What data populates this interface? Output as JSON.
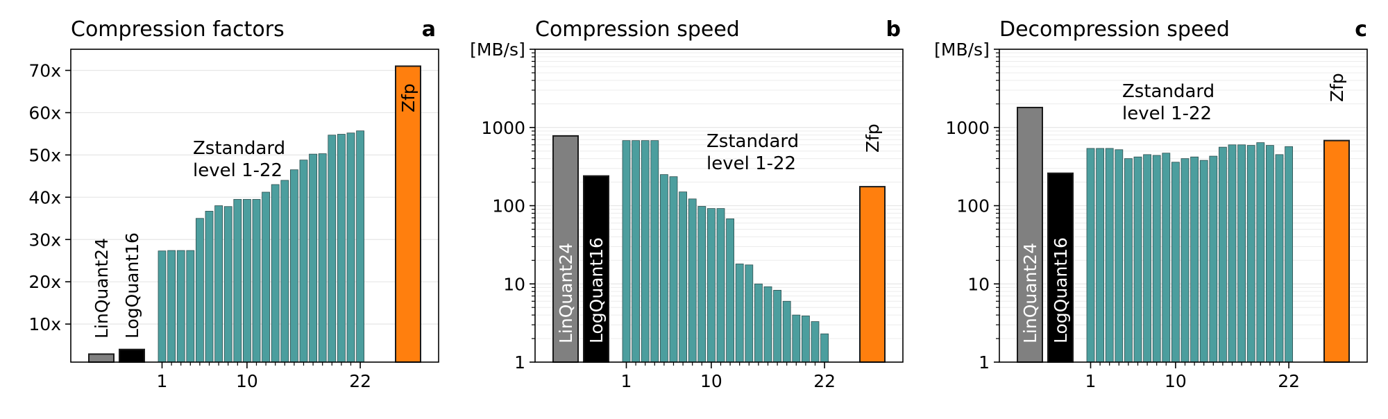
{
  "chart_data": [
    {
      "type": "bar",
      "title": "Compression factors",
      "panel_letter": "a",
      "ylabel": "",
      "ylim": [
        1,
        75
      ],
      "yscale": "linear",
      "yticks": [
        10,
        20,
        30,
        40,
        50,
        60,
        70
      ],
      "ytick_labels": [
        "10x",
        "20x",
        "30x",
        "40x",
        "50x",
        "60x",
        "70x"
      ],
      "xtick_labels": [
        "1",
        "10",
        "22"
      ],
      "bars": [
        {
          "label": "LinQuant24",
          "value": 2.9,
          "color": "#808080"
        },
        {
          "label": "LogQuant16",
          "value": 4.0,
          "color": "#000000"
        },
        {
          "label": "Zfp",
          "value": 71.0,
          "color": "#ff7f0e"
        }
      ],
      "zstd": {
        "label_line1": "Zstandard",
        "label_line2": "level 1-22",
        "color": "#4c9e9e",
        "levels": [
          1,
          2,
          3,
          4,
          5,
          6,
          7,
          8,
          9,
          10,
          11,
          12,
          13,
          14,
          15,
          16,
          17,
          18,
          19,
          20,
          21,
          22
        ],
        "values": [
          27.3,
          27.4,
          27.4,
          27.4,
          35.0,
          36.7,
          38.0,
          37.8,
          39.5,
          39.5,
          39.5,
          41.2,
          43.0,
          44.0,
          46.5,
          48.8,
          50.2,
          50.3,
          54.7,
          54.9,
          55.2,
          55.7
        ]
      },
      "grid": true
    },
    {
      "type": "bar",
      "title": "Compression speed",
      "panel_letter": "b",
      "ylabel": "[MB/s]",
      "ylim": [
        1,
        10000
      ],
      "yscale": "log",
      "yticks": [
        1,
        10,
        100,
        1000
      ],
      "ytick_labels": [
        "1",
        "10",
        "100",
        "1000"
      ],
      "xtick_labels": [
        "1",
        "10",
        "22"
      ],
      "bars": [
        {
          "label": "LinQuant24",
          "value": 780,
          "color": "#808080"
        },
        {
          "label": "LogQuant16",
          "value": 240,
          "color": "#000000"
        },
        {
          "label": "Zfp",
          "value": 175,
          "color": "#ff7f0e"
        }
      ],
      "zstd": {
        "label_line1": "Zstandard",
        "label_line2": "level 1-22",
        "color": "#4c9e9e",
        "levels": [
          1,
          2,
          3,
          4,
          5,
          6,
          7,
          8,
          9,
          10,
          11,
          12,
          13,
          14,
          15,
          16,
          17,
          18,
          19,
          20,
          21,
          22
        ],
        "values": [
          680,
          680,
          680,
          680,
          250,
          235,
          150,
          122,
          98,
          92,
          92,
          68,
          18,
          17.5,
          10,
          9.2,
          8.3,
          6.0,
          4.0,
          3.9,
          3.3,
          2.3
        ]
      },
      "grid": true
    },
    {
      "type": "bar",
      "title": "Decompression speed",
      "panel_letter": "c",
      "ylabel": "[MB/s]",
      "ylim": [
        1,
        10000
      ],
      "yscale": "log",
      "yticks": [
        1,
        10,
        100,
        1000
      ],
      "ytick_labels": [
        "1",
        "10",
        "100",
        "1000"
      ],
      "xtick_labels": [
        "1",
        "10",
        "22"
      ],
      "bars": [
        {
          "label": "LinQuant24",
          "value": 1800,
          "color": "#808080"
        },
        {
          "label": "LogQuant16",
          "value": 260,
          "color": "#000000"
        },
        {
          "label": "Zfp",
          "value": 680,
          "color": "#ff7f0e"
        }
      ],
      "zstd": {
        "label_line1": "Zstandard",
        "label_line2": "level 1-22",
        "color": "#4c9e9e",
        "levels": [
          1,
          2,
          3,
          4,
          5,
          6,
          7,
          8,
          9,
          10,
          11,
          12,
          13,
          14,
          15,
          16,
          17,
          18,
          19,
          20,
          21,
          22
        ],
        "values": [
          540,
          540,
          540,
          520,
          400,
          420,
          450,
          440,
          470,
          360,
          400,
          420,
          380,
          430,
          560,
          600,
          600,
          590,
          640,
          590,
          450,
          570
        ]
      },
      "grid": true
    }
  ]
}
